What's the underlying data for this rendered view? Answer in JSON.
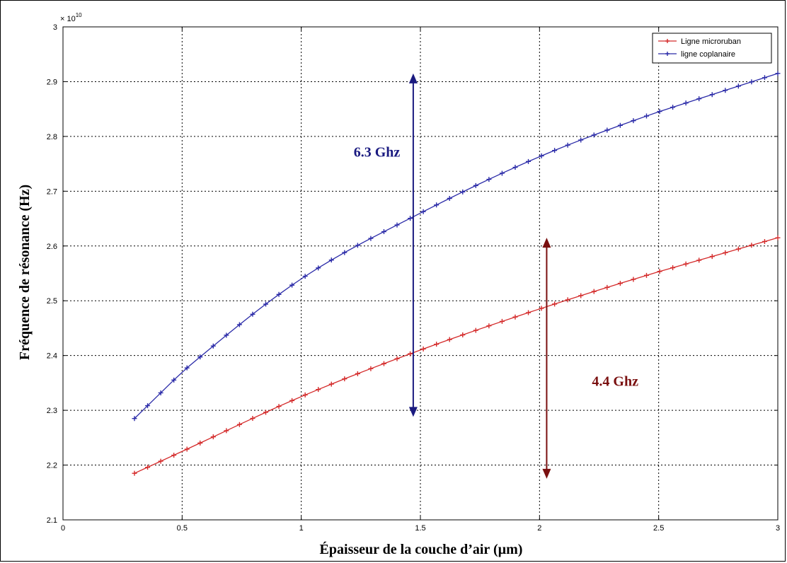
{
  "chart_data": {
    "type": "line",
    "xlabel": "Épaisseur de la couche d’air (µm)",
    "ylabel": "Fréquence de résonance (Hz)",
    "y_multiplier": "× 10",
    "y_exponent": "10",
    "xlim": [
      0,
      3
    ],
    "ylim": [
      2.1,
      3.0
    ],
    "x_ticks": [
      0,
      0.5,
      1,
      1.5,
      2,
      2.5,
      3
    ],
    "x_tick_labels": [
      "0",
      "0.5",
      "1",
      "1.5",
      "2",
      "2.5",
      "3"
    ],
    "y_ticks": [
      2.1,
      2.2,
      2.3,
      2.4,
      2.5,
      2.6,
      2.7,
      2.8,
      2.9,
      3.0
    ],
    "y_tick_labels": [
      "2.1",
      "2.2",
      "2.3",
      "2.4",
      "2.5",
      "2.6",
      "2.7",
      "2.8",
      "2.9",
      "3"
    ],
    "grid": true,
    "legend_position": "top-right",
    "series": [
      {
        "name": "Ligne microruban",
        "color": "#d42a2a",
        "marker": "plus",
        "x_start": 0.3,
        "x_end": 3.0,
        "n_points": 50,
        "anchors": [
          [
            0.3,
            2.185
          ],
          [
            0.5,
            2.225
          ],
          [
            1.0,
            2.325
          ],
          [
            1.5,
            2.41
          ],
          [
            2.0,
            2.485
          ],
          [
            2.5,
            2.553
          ],
          [
            3.0,
            2.615
          ]
        ]
      },
      {
        "name": "ligne coplanaire",
        "color": "#2a2aa8",
        "marker": "plus",
        "x_start": 0.3,
        "x_end": 3.0,
        "n_points": 50,
        "anchors": [
          [
            0.3,
            2.285
          ],
          [
            0.5,
            2.37
          ],
          [
            1.0,
            2.54
          ],
          [
            1.5,
            2.66
          ],
          [
            2.0,
            2.763
          ],
          [
            2.5,
            2.845
          ],
          [
            3.0,
            2.915
          ]
        ]
      }
    ],
    "annotations": [
      {
        "text": "6.3 Ghz",
        "color": "#1a1a80",
        "x": 1.47,
        "y_from": 2.288,
        "y_to": 2.915,
        "label_x": 1.22,
        "label_y": 2.763
      },
      {
        "text": "4.4 Ghz",
        "color": "#7a1010",
        "x": 2.03,
        "y_from": 2.175,
        "y_to": 2.615,
        "label_x": 2.22,
        "label_y": 2.345
      }
    ]
  }
}
